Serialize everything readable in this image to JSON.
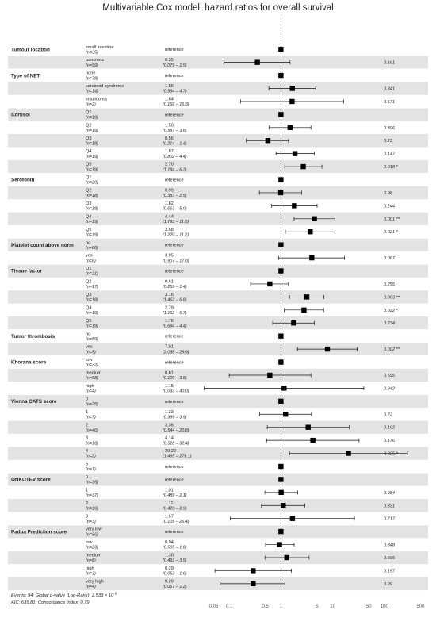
{
  "chart_data": {
    "type": "forest",
    "title": "Multivariable Cox model: hazard ratios for overall survival",
    "x_scale": "log",
    "xlim": [
      0.03,
      700
    ],
    "x_ticks": [
      0.05,
      0.1,
      0.5,
      1,
      5,
      10,
      50,
      100,
      500
    ],
    "reference_line": 1,
    "footnote_line1": "Events: 94; Global p-value (Log-Rank): 2.533 × 10",
    "footnote_sup": "-6",
    "footnote_line2": "AIC: 639.81; Concordance Index: 0.79",
    "rows": [
      {
        "var": "Tumour location",
        "level": "small intestine",
        "n": "(n=35)",
        "ref": true,
        "hr": "reference",
        "ci": "",
        "p": "",
        "est": 1
      },
      {
        "var": "",
        "level": "pancreas",
        "n": "(n=59)",
        "hr": "0.35",
        "ci": "(0.079 – 1.5)",
        "p": "0.161",
        "est": 0.35,
        "lo": 0.079,
        "hi": 1.5
      },
      {
        "var": "Type of NET",
        "level": "none",
        "n": "(n=78)",
        "ref": true,
        "hr": "reference",
        "ci": "",
        "p": "",
        "est": 1
      },
      {
        "var": "",
        "level": "carcinoid syndrome",
        "n": "(n=14)",
        "hr": "1.66",
        "ci": "(0.584 – 4.7)",
        "p": "0.341",
        "est": 1.66,
        "lo": 0.584,
        "hi": 4.7
      },
      {
        "var": "",
        "level": "insulinoma",
        "n": "(n=2)",
        "hr": "1.64",
        "ci": "(0.166 – 16.3)",
        "p": "0.671",
        "est": 1.64,
        "lo": 0.166,
        "hi": 16.3
      },
      {
        "var": "Cortisol",
        "level": "Q1",
        "n": "(n=19)",
        "ref": true,
        "hr": "reference",
        "ci": "",
        "p": "",
        "est": 1
      },
      {
        "var": "",
        "level": "Q2",
        "n": "(n=19)",
        "hr": "1.50",
        "ci": "(0.587 – 3.8)",
        "p": "0.396",
        "est": 1.5,
        "lo": 0.587,
        "hi": 3.8
      },
      {
        "var": "",
        "level": "Q3",
        "n": "(n=18)",
        "hr": "0.56",
        "ci": "(0.214 – 1.4)",
        "p": "0.23",
        "est": 0.56,
        "lo": 0.214,
        "hi": 1.4
      },
      {
        "var": "",
        "level": "Q4",
        "n": "(n=19)",
        "hr": "1.87",
        "ci": "(0.802 – 4.4)",
        "p": "0.147",
        "est": 1.87,
        "lo": 0.802,
        "hi": 4.4
      },
      {
        "var": "",
        "level": "Q5",
        "n": "(n=19)",
        "hr": "2.70",
        "ci": "(1.184 – 6.2)",
        "p": "0.018 *",
        "est": 2.7,
        "lo": 1.184,
        "hi": 6.2
      },
      {
        "var": "Serotonin",
        "level": "Q1",
        "n": "(n=20)",
        "ref": true,
        "hr": "reference",
        "ci": "",
        "p": "",
        "est": 1
      },
      {
        "var": "",
        "level": "Q2",
        "n": "(n=18)",
        "hr": "0.99",
        "ci": "(0.383 – 2.5)",
        "p": "0.98",
        "est": 0.99,
        "lo": 0.383,
        "hi": 2.5
      },
      {
        "var": "",
        "level": "Q3",
        "n": "(n=18)",
        "hr": "1.82",
        "ci": "(0.663 – 5.0)",
        "p": "0.244",
        "est": 1.82,
        "lo": 0.663,
        "hi": 5.0
      },
      {
        "var": "",
        "level": "Q4",
        "n": "(n=19)",
        "hr": "4.44",
        "ci": "(1.793 – 11.0)",
        "p": "0.001 **",
        "est": 4.44,
        "lo": 1.793,
        "hi": 11.0
      },
      {
        "var": "",
        "level": "Q5",
        "n": "(n=19)",
        "hr": "3.68",
        "ci": "(1.220 – 11.1)",
        "p": "0.021 *",
        "est": 3.68,
        "lo": 1.22,
        "hi": 11.1
      },
      {
        "var": "Platelet count above norm",
        "level": "no",
        "n": "(n=88)",
        "ref": true,
        "hr": "reference",
        "ci": "",
        "p": "",
        "est": 1
      },
      {
        "var": "",
        "level": "yes",
        "n": "(n=6)",
        "hr": "3.95",
        "ci": "(0.907 – 17.0)",
        "p": "0.067",
        "est": 3.95,
        "lo": 0.907,
        "hi": 17.0
      },
      {
        "var": "Tissue factor",
        "level": "Q1",
        "n": "(n=21)",
        "ref": true,
        "hr": "reference",
        "ci": "",
        "p": "",
        "est": 1
      },
      {
        "var": "",
        "level": "Q2",
        "n": "(n=17)",
        "hr": "0.61",
        "ci": "(0.259 – 1.4)",
        "p": "0.255",
        "est": 0.61,
        "lo": 0.259,
        "hi": 1.4
      },
      {
        "var": "",
        "level": "Q3",
        "n": "(n=18)",
        "hr": "3.16",
        "ci": "(1.462 – 6.8)",
        "p": "0.003 **",
        "est": 3.16,
        "lo": 1.462,
        "hi": 6.8
      },
      {
        "var": "",
        "level": "Q4",
        "n": "(n=19)",
        "hr": "2.79",
        "ci": "(1.162 – 6.7)",
        "p": "0.022 *",
        "est": 2.79,
        "lo": 1.162,
        "hi": 6.7
      },
      {
        "var": "",
        "level": "Q5",
        "n": "(n=19)",
        "hr": "1.76",
        "ci": "(0.694 – 4.4)",
        "p": "0.234",
        "est": 1.76,
        "lo": 0.694,
        "hi": 4.4
      },
      {
        "var": "Tumor thrombosis",
        "level": "no",
        "n": "(n=89)",
        "ref": true,
        "hr": "reference",
        "ci": "",
        "p": "",
        "est": 1
      },
      {
        "var": "",
        "level": "yes",
        "n": "(n=5)",
        "hr": "7.91",
        "ci": "(2.088 – 29.9)",
        "p": "0.002 **",
        "est": 7.91,
        "lo": 2.088,
        "hi": 29.9
      },
      {
        "var": "Khorana score",
        "level": "low",
        "n": "(n=32)",
        "ref": true,
        "hr": "reference",
        "ci": "",
        "p": "",
        "est": 1
      },
      {
        "var": "",
        "level": "medium",
        "n": "(n=58)",
        "hr": "0.61",
        "ci": "(0.100 – 3.8)",
        "p": "0.595",
        "est": 0.61,
        "lo": 0.1,
        "hi": 3.8
      },
      {
        "var": "",
        "level": "high",
        "n": "(n=4)",
        "hr": "1.15",
        "ci": "(0.033 – 40.0)",
        "p": "0.942",
        "est": 1.15,
        "lo": 0.033,
        "hi": 40.0
      },
      {
        "var": "Vienna CATS score",
        "level": "0",
        "n": "(n=25)",
        "ref": true,
        "hr": "reference",
        "ci": "",
        "p": "",
        "est": 1
      },
      {
        "var": "",
        "level": "1",
        "n": "(n=7)",
        "hr": "1.23",
        "ci": "(0.389 – 3.9)",
        "p": "0.72",
        "est": 1.23,
        "lo": 0.389,
        "hi": 3.9
      },
      {
        "var": "",
        "level": "2",
        "n": "(n=46)",
        "hr": "3.36",
        "ci": "(0.544 – 20.8)",
        "p": "0.192",
        "est": 3.36,
        "lo": 0.544,
        "hi": 20.8
      },
      {
        "var": "",
        "level": "3",
        "n": "(n=13)",
        "hr": "4.14",
        "ci": "(0.528 – 32.4)",
        "p": "0.176",
        "est": 4.14,
        "lo": 0.528,
        "hi": 32.4
      },
      {
        "var": "",
        "level": "4",
        "n": "(n=2)",
        "hr": "20.22",
        "ci": "(1.465 – 279.1)",
        "p": "0.025 *",
        "est": 20.22,
        "lo": 1.465,
        "hi": 279.1
      },
      {
        "var": "",
        "level": "5",
        "n": "(n=1)",
        "ref": true,
        "hr": "reference",
        "ci": "",
        "p": "",
        "est": 1
      },
      {
        "var": "ONKOTEV score",
        "level": "0",
        "n": "(n=35)",
        "ref": true,
        "hr": "reference",
        "ci": "",
        "p": "",
        "est": 1
      },
      {
        "var": "",
        "level": "1",
        "n": "(n=37)",
        "hr": "1.01",
        "ci": "(0.489 – 2.1)",
        "p": "0.984",
        "est": 1.01,
        "lo": 0.489,
        "hi": 2.1
      },
      {
        "var": "",
        "level": "2",
        "n": "(n=19)",
        "hr": "1.11",
        "ci": "(0.420 – 2.9)",
        "p": "0.831",
        "est": 1.11,
        "lo": 0.42,
        "hi": 2.9
      },
      {
        "var": "",
        "level": "3",
        "n": "(n=3)",
        "hr": "1.67",
        "ci": "(0.105 – 26.4)",
        "p": "0.717",
        "est": 1.67,
        "lo": 0.105,
        "hi": 26.4
      },
      {
        "var": "Padua Prediction score",
        "level": "very low",
        "n": "(n=56)",
        "ref": true,
        "hr": "reference",
        "ci": "",
        "p": "",
        "est": 1
      },
      {
        "var": "",
        "level": "low",
        "n": "(n=23)",
        "hr": "0.94",
        "ci": "(0.505 – 1.8)",
        "p": "0.848",
        "est": 0.94,
        "lo": 0.505,
        "hi": 1.8
      },
      {
        "var": "",
        "level": "medium",
        "n": "(n=8)",
        "hr": "1.30",
        "ci": "(0.491 – 3.5)",
        "p": "0.595",
        "est": 1.3,
        "lo": 0.491,
        "hi": 3.5
      },
      {
        "var": "",
        "level": "high",
        "n": "(n=3)",
        "hr": "0.29",
        "ci": "(0.053 – 1.6)",
        "p": "0.157",
        "est": 0.29,
        "lo": 0.053,
        "hi": 1.6
      },
      {
        "var": "",
        "level": "very high",
        "n": "(n=4)",
        "hr": "0.29",
        "ci": "(0.067 – 1.2)",
        "p": "0.09",
        "est": 0.29,
        "lo": 0.067,
        "hi": 1.2
      }
    ]
  }
}
